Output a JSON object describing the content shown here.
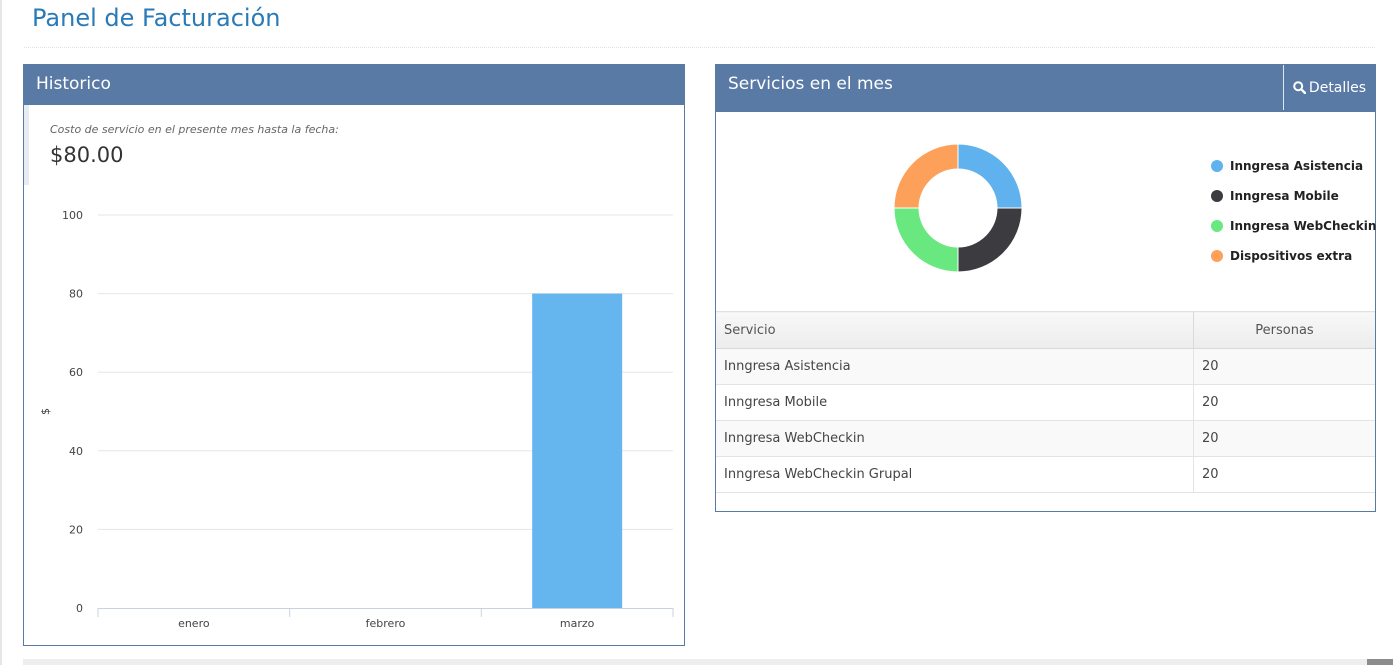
{
  "page": {
    "title": "Panel de Facturación"
  },
  "historico": {
    "title": "Historico",
    "cost_label": "Costo de servicio en el presente mes hasta la fecha:",
    "cost_value": "$80.00"
  },
  "servicios": {
    "title": "Servicios en el mes",
    "details_label": "Detalles",
    "details_icon": "search-icon",
    "legend": [
      {
        "label": "Inngresa Asistencia",
        "color": "#5fb2ed"
      },
      {
        "label": "Inngresa Mobile",
        "color": "#3b3b40"
      },
      {
        "label": "Inngresa WebCheckin",
        "color": "#69e87f"
      },
      {
        "label": "Dispositivos extra",
        "color": "#fca05a"
      }
    ],
    "table": {
      "headers": [
        "Servicio",
        "Personas"
      ],
      "rows": [
        [
          "Inngresa Asistencia",
          "20"
        ],
        [
          "Inngresa Mobile",
          "20"
        ],
        [
          "Inngresa WebCheckin",
          "20"
        ],
        [
          "Inngresa WebCheckin Grupal",
          "20"
        ]
      ]
    }
  },
  "chart_data": [
    {
      "type": "bar",
      "categories": [
        "enero",
        "febrero",
        "marzo"
      ],
      "values": [
        0,
        0,
        80
      ],
      "ylabel": "$",
      "ylim": [
        0,
        100
      ],
      "yticks": [
        0,
        20,
        40,
        60,
        80,
        100
      ],
      "grid": true,
      "color": "#65b5ef"
    },
    {
      "type": "pie",
      "variant": "donut",
      "labels": [
        "Inngresa Asistencia",
        "Inngresa Mobile",
        "Inngresa WebCheckin",
        "Dispositivos extra"
      ],
      "values": [
        20,
        20,
        20,
        20
      ],
      "colors": [
        "#5fb2ed",
        "#3b3b40",
        "#69e87f",
        "#fca05a"
      ],
      "legend": "right"
    }
  ]
}
